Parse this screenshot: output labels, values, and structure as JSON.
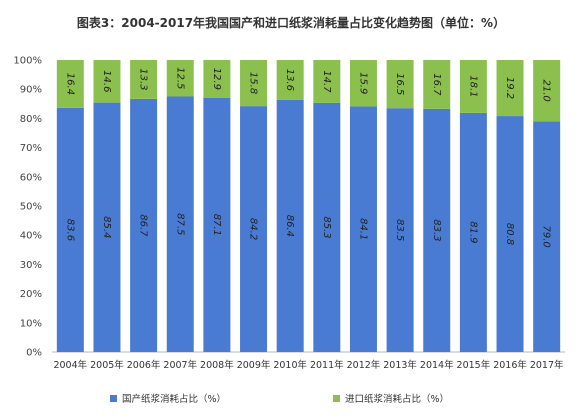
{
  "chart_data": {
    "type": "bar",
    "stacked": true,
    "title": "图表3：2004-2017年我国国产和进口纸浆消耗量占比变化趋势图（单位：%）",
    "categories": [
      "2004年",
      "2005年",
      "2006年",
      "2007年",
      "2008年",
      "2009年",
      "2010年",
      "2011年",
      "2012年",
      "2013年",
      "2014年",
      "2015年",
      "2016年",
      "2017年"
    ],
    "series": [
      {
        "name": "国产纸浆消耗占比（%）",
        "color": "#4a7bd2",
        "values": [
          83.6,
          85.4,
          86.7,
          87.5,
          87.1,
          84.2,
          86.4,
          85.3,
          84.1,
          83.5,
          83.3,
          81.9,
          80.8,
          79.0
        ]
      },
      {
        "name": "进口纸浆消耗占比（%）",
        "color": "#8cc04e",
        "values": [
          16.4,
          14.6,
          13.3,
          12.5,
          12.9,
          15.8,
          13.6,
          14.7,
          15.9,
          16.5,
          16.7,
          18.1,
          19.2,
          21.0
        ]
      }
    ],
    "yticks": [
      "0%",
      "10%",
      "20%",
      "30%",
      "40%",
      "50%",
      "60%",
      "70%",
      "80%",
      "90%",
      "100%"
    ],
    "ylim": [
      0,
      100
    ],
    "grid": false,
    "legend_position": "bottom"
  }
}
